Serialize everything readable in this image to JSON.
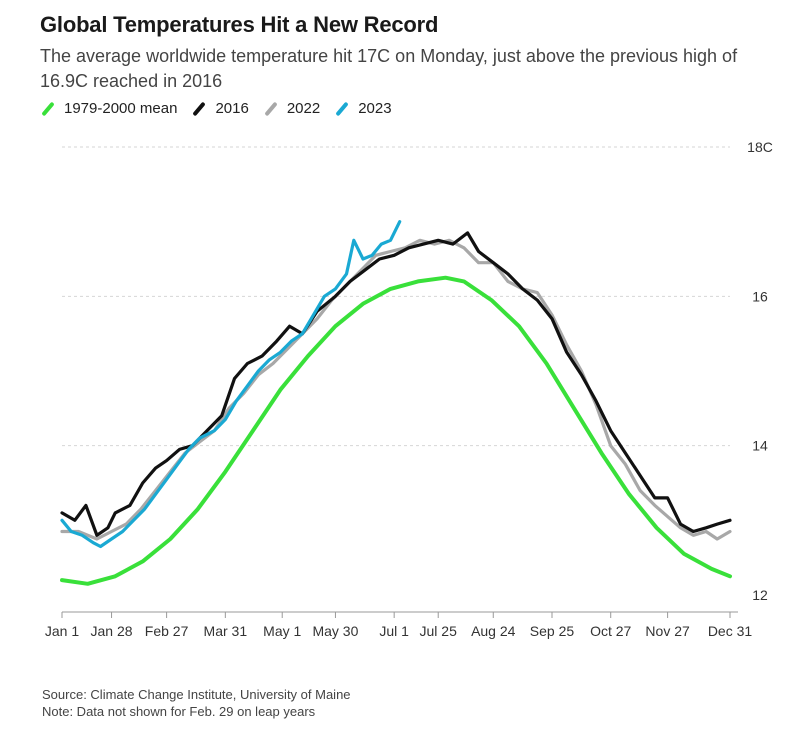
{
  "title": "Global Temperatures Hit a New Record",
  "subtitle": "The average worldwide temperature hit 17C on Monday, just above the previous high of 16.9C reached in 2016",
  "footer": {
    "source": "Source: Climate Change Institute, University of Maine",
    "note": "Note: Data not shown for Feb. 29 on leap years"
  },
  "chart_data": {
    "type": "line",
    "x_unit": "day of year",
    "x_ticks": [
      {
        "label": "Jan 1",
        "day": 1
      },
      {
        "label": "Jan 28",
        "day": 28
      },
      {
        "label": "Feb 27",
        "day": 58
      },
      {
        "label": "Mar 31",
        "day": 90
      },
      {
        "label": "May 1",
        "day": 121
      },
      {
        "label": "May 30",
        "day": 150
      },
      {
        "label": "Jul 1",
        "day": 182
      },
      {
        "label": "Jul 25",
        "day": 206
      },
      {
        "label": "Aug 24",
        "day": 236
      },
      {
        "label": "Sep 25",
        "day": 268
      },
      {
        "label": "Oct 27",
        "day": 300
      },
      {
        "label": "Nov 27",
        "day": 331
      },
      {
        "label": "Dec 31",
        "day": 365
      }
    ],
    "y_ticks": [
      {
        "value": 12,
        "label": "12"
      },
      {
        "value": 14,
        "label": "14"
      },
      {
        "value": 16,
        "label": "16"
      },
      {
        "value": 18,
        "label": "18C"
      }
    ],
    "xlim": [
      1,
      365
    ],
    "ylim": [
      12,
      18
    ],
    "grid": true,
    "legend_position": "top-left",
    "series": [
      {
        "name": "1979-2000 mean",
        "color": "#39e03a",
        "points": [
          [
            1,
            12.2
          ],
          [
            15,
            12.15
          ],
          [
            30,
            12.25
          ],
          [
            45,
            12.45
          ],
          [
            60,
            12.75
          ],
          [
            75,
            13.15
          ],
          [
            90,
            13.65
          ],
          [
            105,
            14.2
          ],
          [
            120,
            14.75
          ],
          [
            135,
            15.2
          ],
          [
            150,
            15.6
          ],
          [
            165,
            15.9
          ],
          [
            180,
            16.1
          ],
          [
            195,
            16.2
          ],
          [
            210,
            16.25
          ],
          [
            220,
            16.2
          ],
          [
            235,
            15.95
          ],
          [
            250,
            15.6
          ],
          [
            265,
            15.1
          ],
          [
            280,
            14.5
          ],
          [
            295,
            13.9
          ],
          [
            310,
            13.35
          ],
          [
            325,
            12.9
          ],
          [
            340,
            12.55
          ],
          [
            355,
            12.35
          ],
          [
            365,
            12.25
          ]
        ]
      },
      {
        "name": "2016",
        "color": "#111111",
        "points": [
          [
            1,
            13.1
          ],
          [
            8,
            13.0
          ],
          [
            14,
            13.2
          ],
          [
            20,
            12.8
          ],
          [
            26,
            12.9
          ],
          [
            30,
            13.1
          ],
          [
            38,
            13.2
          ],
          [
            45,
            13.5
          ],
          [
            52,
            13.7
          ],
          [
            58,
            13.8
          ],
          [
            65,
            13.95
          ],
          [
            72,
            14.0
          ],
          [
            80,
            14.2
          ],
          [
            88,
            14.4
          ],
          [
            95,
            14.9
          ],
          [
            102,
            15.1
          ],
          [
            110,
            15.2
          ],
          [
            118,
            15.4
          ],
          [
            125,
            15.6
          ],
          [
            132,
            15.5
          ],
          [
            140,
            15.8
          ],
          [
            150,
            16.0
          ],
          [
            158,
            16.2
          ],
          [
            166,
            16.35
          ],
          [
            174,
            16.5
          ],
          [
            182,
            16.55
          ],
          [
            190,
            16.65
          ],
          [
            198,
            16.7
          ],
          [
            206,
            16.75
          ],
          [
            214,
            16.7
          ],
          [
            222,
            16.85
          ],
          [
            228,
            16.6
          ],
          [
            236,
            16.45
          ],
          [
            244,
            16.3
          ],
          [
            252,
            16.1
          ],
          [
            260,
            15.95
          ],
          [
            268,
            15.7
          ],
          [
            276,
            15.25
          ],
          [
            284,
            14.95
          ],
          [
            292,
            14.6
          ],
          [
            300,
            14.2
          ],
          [
            308,
            13.9
          ],
          [
            316,
            13.6
          ],
          [
            324,
            13.3
          ],
          [
            331,
            13.3
          ],
          [
            338,
            12.95
          ],
          [
            345,
            12.85
          ],
          [
            352,
            12.9
          ],
          [
            358,
            12.95
          ],
          [
            365,
            13.0
          ]
        ]
      },
      {
        "name": "2022",
        "color": "#a8a8a8",
        "points": [
          [
            1,
            12.85
          ],
          [
            10,
            12.85
          ],
          [
            20,
            12.75
          ],
          [
            28,
            12.85
          ],
          [
            36,
            12.95
          ],
          [
            44,
            13.15
          ],
          [
            52,
            13.4
          ],
          [
            60,
            13.65
          ],
          [
            68,
            13.9
          ],
          [
            76,
            14.05
          ],
          [
            84,
            14.2
          ],
          [
            92,
            14.5
          ],
          [
            100,
            14.7
          ],
          [
            108,
            14.95
          ],
          [
            116,
            15.1
          ],
          [
            124,
            15.3
          ],
          [
            132,
            15.5
          ],
          [
            140,
            15.7
          ],
          [
            148,
            15.95
          ],
          [
            156,
            16.15
          ],
          [
            164,
            16.35
          ],
          [
            172,
            16.55
          ],
          [
            180,
            16.6
          ],
          [
            188,
            16.65
          ],
          [
            196,
            16.75
          ],
          [
            204,
            16.7
          ],
          [
            212,
            16.75
          ],
          [
            220,
            16.65
          ],
          [
            228,
            16.45
          ],
          [
            236,
            16.45
          ],
          [
            244,
            16.2
          ],
          [
            252,
            16.1
          ],
          [
            260,
            16.05
          ],
          [
            268,
            15.75
          ],
          [
            276,
            15.35
          ],
          [
            284,
            15.0
          ],
          [
            292,
            14.55
          ],
          [
            300,
            14.0
          ],
          [
            308,
            13.75
          ],
          [
            316,
            13.4
          ],
          [
            324,
            13.2
          ],
          [
            331,
            13.05
          ],
          [
            338,
            12.9
          ],
          [
            345,
            12.8
          ],
          [
            352,
            12.85
          ],
          [
            358,
            12.75
          ],
          [
            365,
            12.85
          ]
        ]
      },
      {
        "name": "2023",
        "color": "#1aa9d3",
        "points": [
          [
            1,
            13.0
          ],
          [
            6,
            12.85
          ],
          [
            12,
            12.8
          ],
          [
            18,
            12.7
          ],
          [
            22,
            12.65
          ],
          [
            28,
            12.75
          ],
          [
            34,
            12.85
          ],
          [
            40,
            13.0
          ],
          [
            46,
            13.15
          ],
          [
            52,
            13.35
          ],
          [
            58,
            13.55
          ],
          [
            64,
            13.75
          ],
          [
            70,
            13.95
          ],
          [
            76,
            14.1
          ],
          [
            84,
            14.2
          ],
          [
            90,
            14.35
          ],
          [
            96,
            14.6
          ],
          [
            102,
            14.8
          ],
          [
            108,
            15.0
          ],
          [
            114,
            15.15
          ],
          [
            120,
            15.25
          ],
          [
            126,
            15.4
          ],
          [
            132,
            15.5
          ],
          [
            138,
            15.75
          ],
          [
            144,
            16.0
          ],
          [
            150,
            16.1
          ],
          [
            156,
            16.3
          ],
          [
            160,
            16.75
          ],
          [
            165,
            16.5
          ],
          [
            170,
            16.55
          ],
          [
            175,
            16.7
          ],
          [
            180,
            16.75
          ],
          [
            185,
            17.0
          ]
        ]
      }
    ]
  }
}
